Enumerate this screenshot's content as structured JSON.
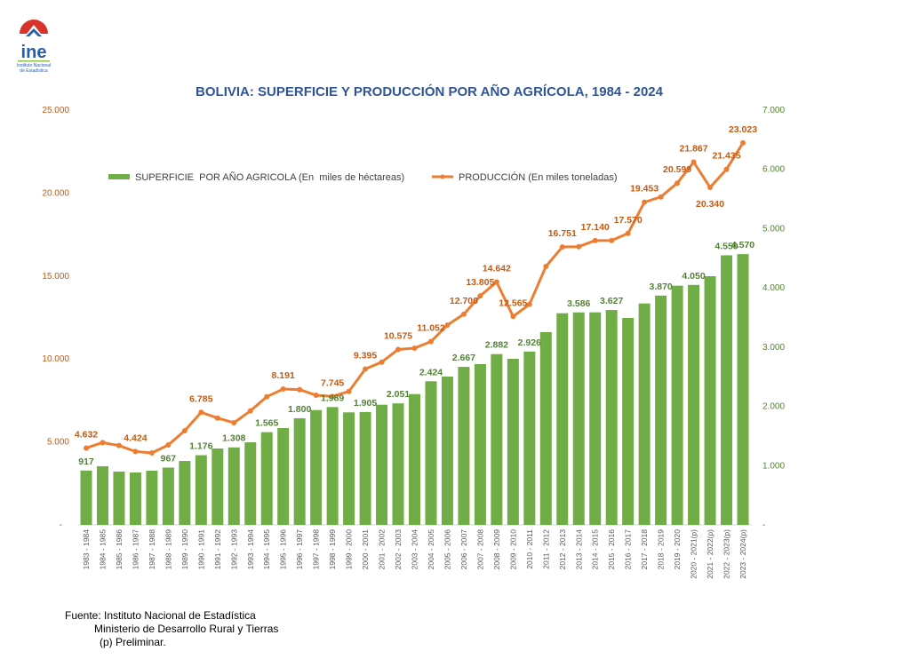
{
  "logo": {
    "text": "ine",
    "subtitle": "Instituto Nacional de Estadística"
  },
  "chart_data": {
    "type": "bar+line",
    "title": "BOLIVIA: SUPERFICIE Y PRODUCCIÓN POR AÑO AGRÍCOLA, 1984 - 2024",
    "categories": [
      "1983 - 1984",
      "1984 - 1985",
      "1985 - 1986",
      "1986 - 1987",
      "1987 - 1988",
      "1988 - 1989",
      "1989 - 1990",
      "1990 - 1991",
      "1991 - 1992",
      "1992 - 1993",
      "1993 - 1994",
      "1994 - 1995",
      "1995 - 1996",
      "1996 - 1997",
      "1997 - 1998",
      "1998 - 1999",
      "1999 - 2000",
      "2000 - 2001",
      "2001 - 2002",
      "2002 - 2003",
      "2003 - 2004",
      "2004 - 2005",
      "2005 - 2006",
      "2006 - 2007",
      "2007 - 2008",
      "2008 - 2009",
      "2009 - 2010",
      "2010 - 2011",
      "2011 - 2012",
      "2012 - 2013",
      "2013 - 2014",
      "2014 - 2015",
      "2015 - 2016",
      "2016 - 2017",
      "2017 - 2018",
      "2018 - 2019",
      "2019 - 2020",
      "2020 - 2021(p)",
      "2021 - 2022(p)",
      "2022 - 2023(p)",
      "2023 - 2024(p)"
    ],
    "series": [
      {
        "name": "SUPERFICIE  POR AÑO AGRICOLA (En  miles de héctareas)",
        "type": "bar",
        "axis": "right",
        "color": "#70ad47",
        "values": [
          917,
          990,
          900,
          885,
          915,
          967,
          1079,
          1176,
          1289,
          1308,
          1394,
          1565,
          1634,
          1800,
          1938,
          1989,
          1899,
          1905,
          2028,
          2051,
          2208,
          2424,
          2503,
          2667,
          2713,
          2882,
          2803,
          2926,
          3253,
          3572,
          3586,
          3587,
          3627,
          3493,
          3737,
          3870,
          4037,
          4050,
          4197,
          4550,
          4570
        ],
        "labels": {
          "0": "917",
          "5": "967",
          "7": "1.176",
          "9": "1.308",
          "11": "1.565",
          "13": "1.800",
          "15": "1.989",
          "17": "1.905",
          "19": "2.051",
          "21": "2.424",
          "23": "2.667",
          "25": "2.882",
          "27": "2.926",
          "30": "3.586",
          "32": "3.627",
          "35": "3.870",
          "37": "4.050",
          "39": "4.550",
          "40": "4.570"
        }
      },
      {
        "name": "PRODUCCIÓN (En miles toneladas)",
        "type": "line",
        "axis": "left",
        "color": "#ed7d31",
        "values": [
          4632,
          4960,
          4782,
          4424,
          4336,
          4818,
          5674,
          6785,
          6440,
          6156,
          6870,
          7725,
          8191,
          8153,
          7816,
          7745,
          8046,
          9395,
          9813,
          10575,
          10653,
          11052,
          12045,
          12700,
          13805,
          14642,
          12565,
          13293,
          15578,
          16751,
          16772,
          17140,
          17147,
          17570,
          19453,
          19770,
          20599,
          21867,
          20340,
          21435,
          23023
        ],
        "labels": {
          "0": "4.632",
          "3": "4.424",
          "7": "6.785",
          "12": "8.191",
          "15": "7.745",
          "17": "9.395",
          "19": "10.575",
          "21": "11.052",
          "23": "12.700",
          "24": "13.805",
          "25": "14.642",
          "26": "12.565",
          "29": "16.751",
          "31": "17.140",
          "33": "17.570",
          "34": "19.453",
          "36": "20.599",
          "37": "21.867",
          "38": "20.340",
          "39": "21.435",
          "40": "23.023"
        }
      }
    ],
    "y_left": {
      "range": [
        0,
        25000
      ],
      "ticks": [
        "-",
        "5.000",
        "10.000",
        "15.000",
        "20.000",
        "25.000"
      ],
      "color": "#c55a11"
    },
    "y_right": {
      "range": [
        0,
        7000
      ],
      "ticks": [
        "-",
        "1.000",
        "2.000",
        "3.000",
        "4.000",
        "5.000",
        "6.000",
        "7.000"
      ],
      "color": "#548235"
    },
    "grid": false,
    "legend": "top-left"
  },
  "source": {
    "line1": "Fuente: Instituto Nacional de Estadística",
    "line2": "Ministerio de Desarrollo Rural y Tierras",
    "line3": "(p) Preliminar."
  }
}
